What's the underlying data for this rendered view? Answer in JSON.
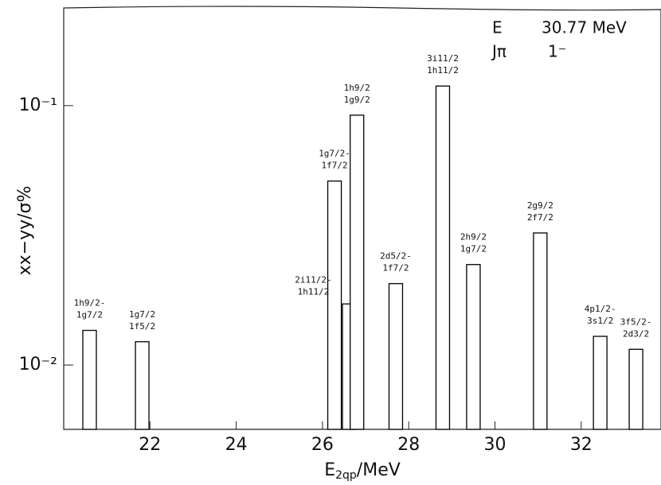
{
  "chart_data": {
    "type": "bar",
    "log_y": true,
    "x": [
      20.6,
      21.82,
      26.28,
      26.62,
      26.8,
      27.7,
      28.79,
      29.5,
      31.05,
      32.44,
      33.27
    ],
    "values": [
      0.0136,
      0.0123,
      0.0512,
      0.0172,
      0.0919,
      0.0206,
      0.119,
      0.0244,
      0.0323,
      0.0129,
      0.0115
    ],
    "bar_labels": [
      [
        "1h9/2-",
        "1g7/2"
      ],
      [
        "1g7/2",
        "1f5/2"
      ],
      [
        "1g7/2-",
        "1f7/2"
      ],
      [
        "2i11/2-",
        "1h11/2"
      ],
      [
        "1h9/2",
        "1g9/2"
      ],
      [
        "2d5/2-",
        "1f7/2"
      ],
      [
        "3i11/2",
        "1h11/2"
      ],
      [
        "2h9/2",
        "1g7/2"
      ],
      [
        "2g9/2",
        "2f7/2"
      ],
      [
        "4p1/2-",
        "3s1/2"
      ],
      [
        "3f5/2-",
        "2d3/2"
      ]
    ],
    "color": "#000000",
    "xlim": [
      20,
      33.85
    ],
    "xticks": [
      22,
      24,
      26,
      28,
      30,
      32
    ],
    "ylim": [
      0.00565,
      0.238
    ],
    "yticks": [
      {
        "value": 0.01,
        "label": "10⁻²"
      },
      {
        "value": 0.1,
        "label": "10⁻¹"
      }
    ],
    "xlabel": {
      "main": "E",
      "sub": "2qp",
      "rest": "/MeV"
    },
    "ylabel": "xx−yy/σ%",
    "annotations": [
      "E",
      "30.77 MeV",
      "Jπ",
      "1⁻"
    ]
  }
}
